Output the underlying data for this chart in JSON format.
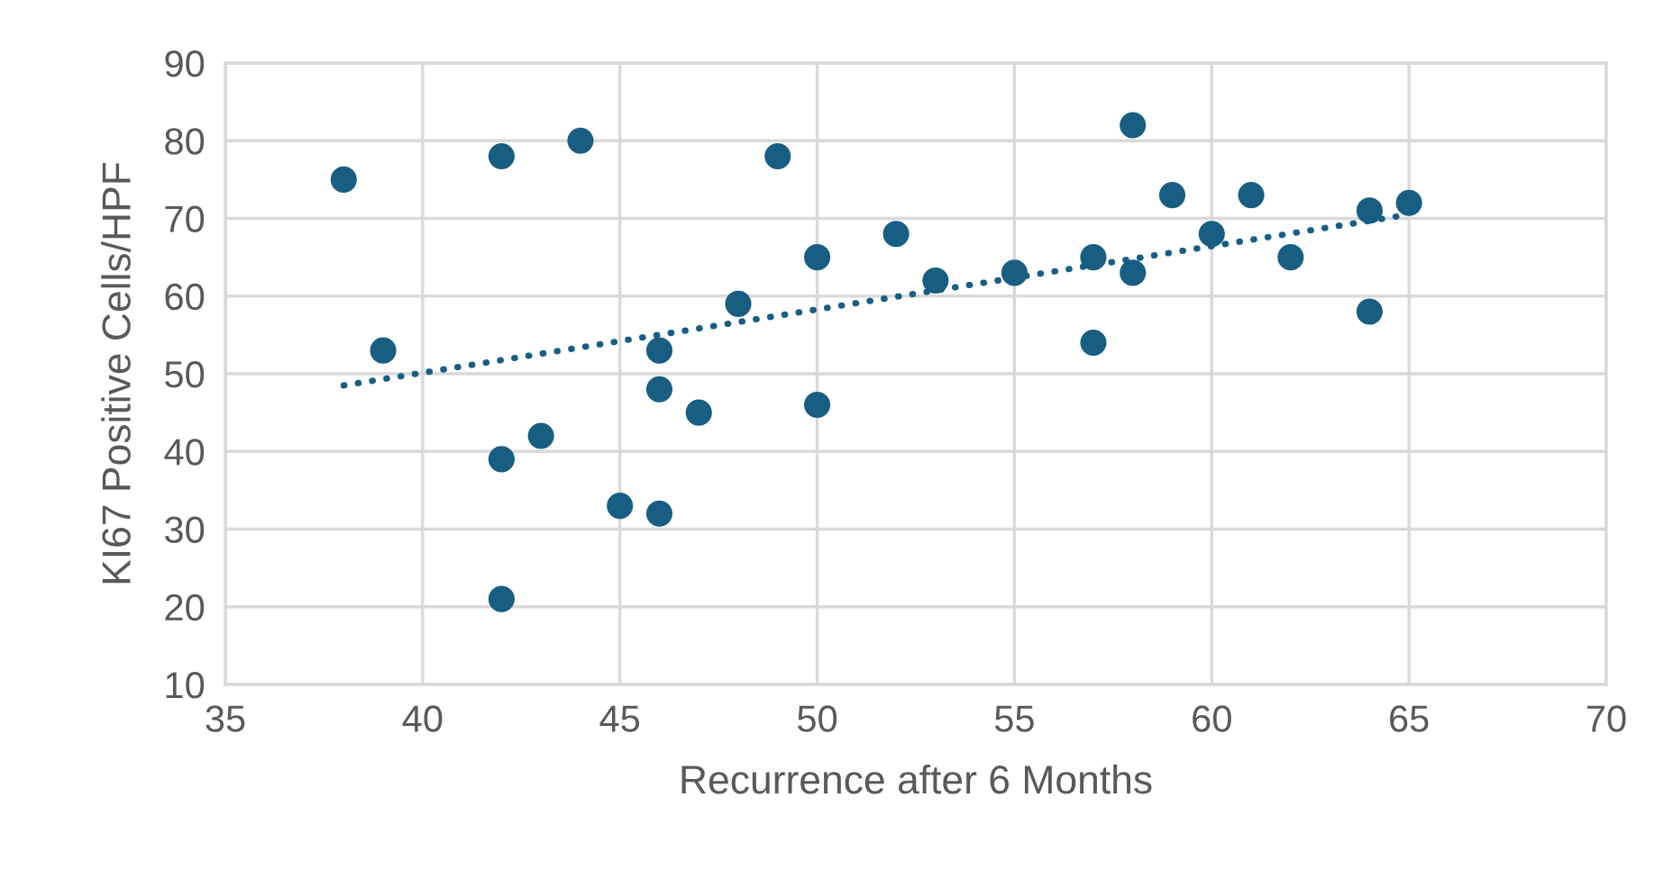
{
  "chart_data": {
    "type": "scatter",
    "xlabel": "Recurrence after 6 Months",
    "ylabel": "KI67 Positive Cells/HPF",
    "x": [
      38,
      39,
      42,
      42,
      42,
      43,
      44,
      45,
      46,
      46,
      46,
      47,
      48,
      49,
      50,
      50,
      52,
      53,
      55,
      57,
      57,
      58,
      58,
      59,
      60,
      61,
      62,
      64,
      64,
      65
    ],
    "series": [
      {
        "color": "#175e82",
        "marker": "circle",
        "values": [
          75,
          53,
          78,
          39,
          21,
          42,
          80,
          33,
          53,
          48,
          32,
          45,
          59,
          78,
          65,
          46,
          68,
          62,
          63,
          65,
          54,
          82,
          63,
          73,
          68,
          73,
          65,
          71,
          58,
          72
        ]
      },
      {
        "type": "line",
        "color": "#175e82",
        "line_style": "dotted",
        "marker": "none",
        "x": [
          38,
          65
        ],
        "values": [
          48.5,
          70.5
        ]
      }
    ],
    "xlim": [
      35,
      70
    ],
    "xticks": [
      35,
      40,
      45,
      50,
      55,
      60,
      65,
      70
    ],
    "ylim": [
      10,
      90
    ],
    "yticks": [
      10,
      20,
      30,
      40,
      50,
      60,
      70,
      80,
      90
    ],
    "grid": true,
    "legend": false
  }
}
